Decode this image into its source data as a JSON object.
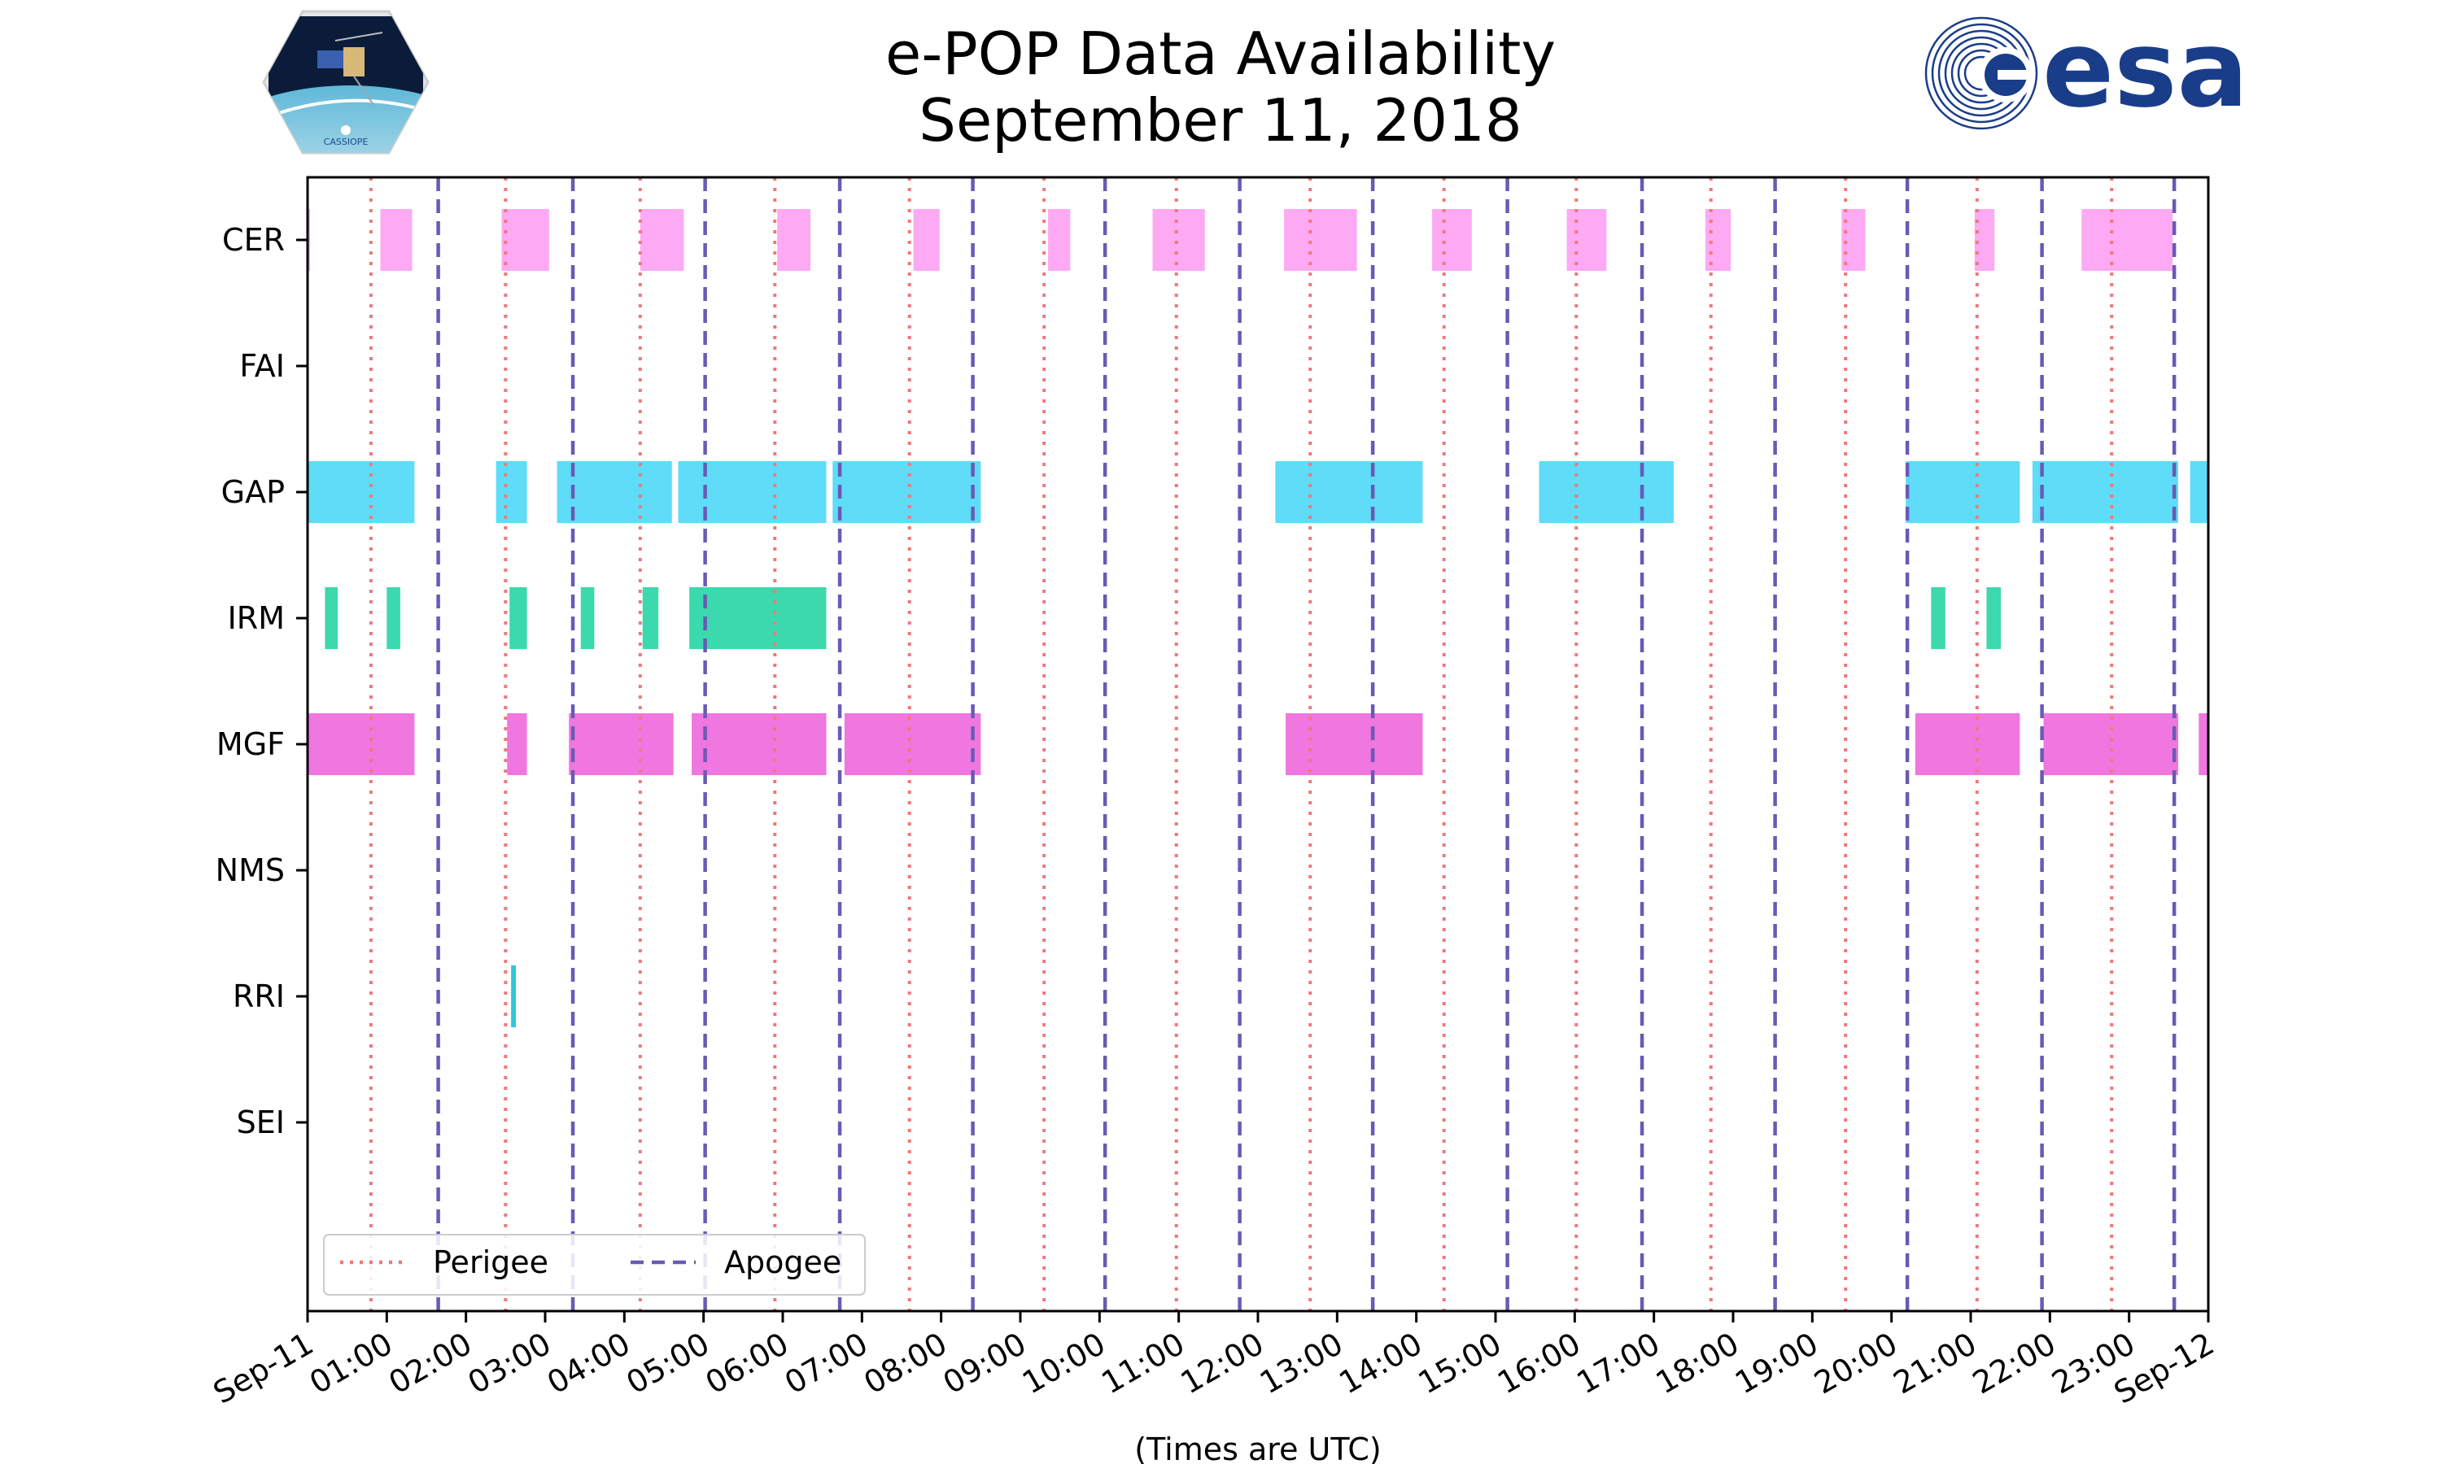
{
  "header": {
    "title_line1": "e-POP Data Availability",
    "title_line2": "September 11, 2018",
    "logo_left_text": "CASSIOPE",
    "logo_right_text": "esa"
  },
  "chart_data": {
    "type": "timeline",
    "title": "e-POP Data Availability September 11, 2018",
    "xlabel": "(Times are UTC)",
    "ylabel": "",
    "x_unit": "hours since 2018-09-11 00:00 UTC",
    "xlim": [
      0,
      24
    ],
    "x_tick_values": [
      0,
      1,
      2,
      3,
      4,
      5,
      6,
      7,
      8,
      9,
      10,
      11,
      12,
      13,
      14,
      15,
      16,
      17,
      18,
      19,
      20,
      21,
      22,
      23,
      24
    ],
    "x_tick_labels": [
      "Sep-11",
      "01:00",
      "02:00",
      "03:00",
      "04:00",
      "05:00",
      "06:00",
      "07:00",
      "08:00",
      "09:00",
      "10:00",
      "11:00",
      "12:00",
      "13:00",
      "14:00",
      "15:00",
      "16:00",
      "17:00",
      "18:00",
      "19:00",
      "20:00",
      "21:00",
      "22:00",
      "23:00",
      "Sep-12"
    ],
    "instruments": [
      "CER",
      "FAI",
      "GAP",
      "IRM",
      "MGF",
      "NMS",
      "RRI",
      "SEI"
    ],
    "colors": {
      "CER": "#fda9f4",
      "GAP": "#5edcf8",
      "IRM": "#3cd8ae",
      "MGF": "#f076e0",
      "RRI": "#2ec6dc",
      "perigee": "#f07878",
      "apogee": "#6a5ab4"
    },
    "intervals": {
      "CER": [
        [
          0,
          0.02
        ],
        [
          0.92,
          1.32
        ],
        [
          2.45,
          3.05
        ],
        [
          4.2,
          4.75
        ],
        [
          5.93,
          6.35
        ],
        [
          7.65,
          7.98
        ],
        [
          9.35,
          9.63
        ],
        [
          10.67,
          11.33
        ],
        [
          12.33,
          13.25
        ],
        [
          14.2,
          14.7
        ],
        [
          15.9,
          16.4
        ],
        [
          17.65,
          17.97
        ],
        [
          19.37,
          19.67
        ],
        [
          21.05,
          21.3
        ],
        [
          22.4,
          23.55
        ]
      ],
      "FAI": [],
      "GAP": [
        [
          0,
          1.35
        ],
        [
          2.38,
          2.77
        ],
        [
          3.15,
          4.6
        ],
        [
          4.68,
          6.55
        ],
        [
          6.63,
          8.5
        ],
        [
          12.22,
          14.08
        ],
        [
          15.55,
          17.25
        ],
        [
          20.18,
          21.62
        ],
        [
          21.78,
          23.62
        ],
        [
          23.77,
          24
        ]
      ],
      "IRM": [
        [
          0.22,
          0.38
        ],
        [
          1,
          1.17
        ],
        [
          2.55,
          2.77
        ],
        [
          3.45,
          3.62
        ],
        [
          4.23,
          4.43
        ],
        [
          4.82,
          6.55
        ],
        [
          20.5,
          20.68
        ],
        [
          21.2,
          21.38
        ]
      ],
      "MGF": [
        [
          0,
          1.35
        ],
        [
          2.52,
          2.77
        ],
        [
          3.3,
          4.62
        ],
        [
          4.85,
          6.55
        ],
        [
          6.78,
          8.5
        ],
        [
          12.35,
          14.08
        ],
        [
          20.3,
          21.62
        ],
        [
          21.92,
          23.62
        ],
        [
          23.88,
          24
        ]
      ],
      "NMS": [],
      "RRI": [
        [
          2.57,
          2.63
        ]
      ],
      "SEI": []
    },
    "perigee_times": [
      0.8,
      2.5,
      4.2,
      5.9,
      7.6,
      9.3,
      10.97,
      12.66,
      14.35,
      16.02,
      17.72,
      19.42,
      21.08,
      22.78
    ],
    "apogee_times": [
      1.65,
      3.35,
      5.02,
      6.72,
      8.4,
      10.07,
      11.77,
      13.45,
      15.15,
      16.85,
      18.53,
      20.2,
      21.9,
      23.57
    ],
    "legend": {
      "position": "lower-left",
      "entries": [
        "Perigee",
        "Apogee"
      ]
    },
    "grid": false
  }
}
